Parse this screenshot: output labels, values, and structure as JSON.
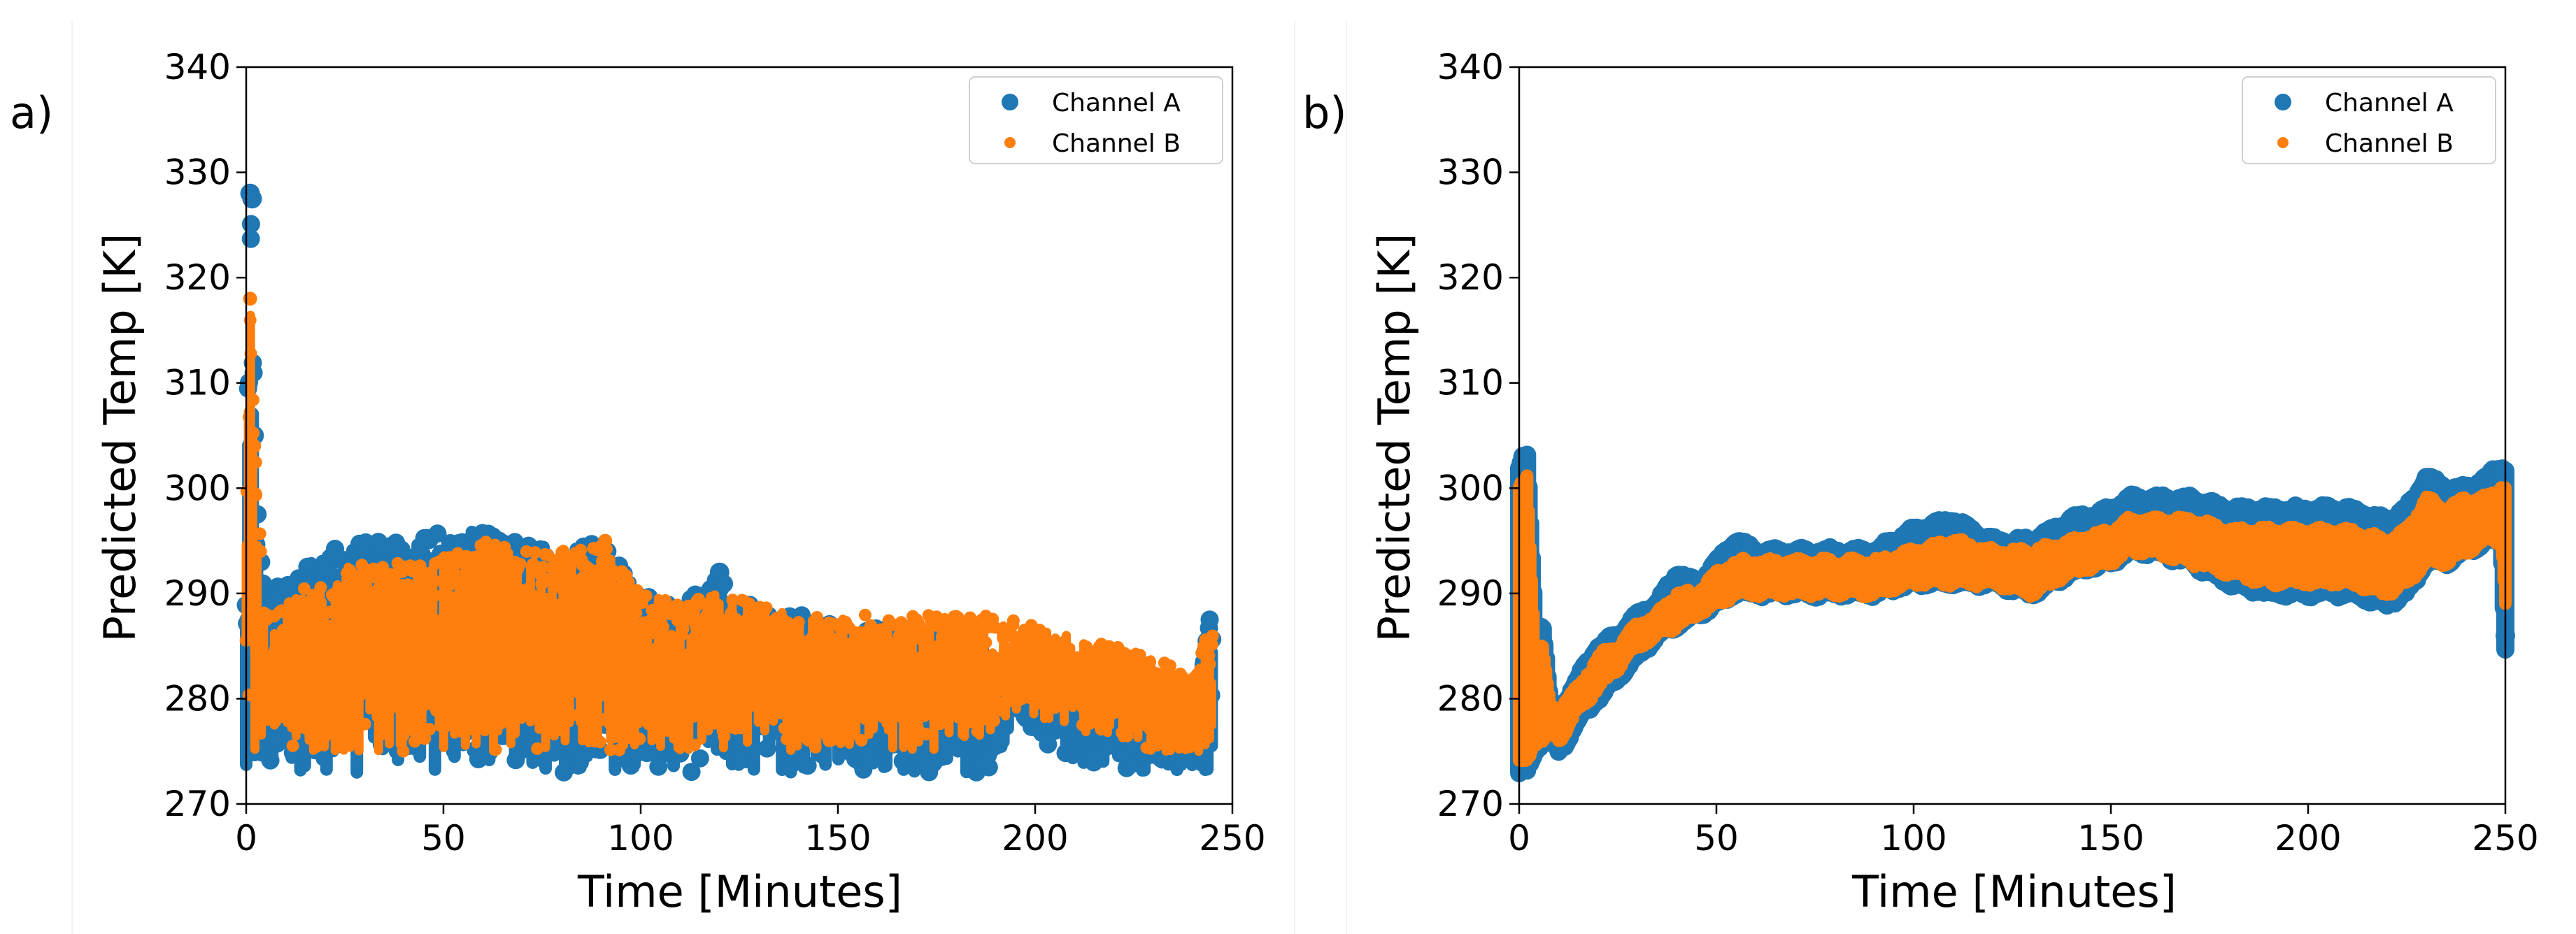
{
  "figure": {
    "panels": [
      "a)",
      "b)"
    ]
  },
  "chart_data": [
    {
      "type": "scatter",
      "panel": "a)",
      "title": "",
      "xlabel": "Time [Minutes]",
      "ylabel": "Predicted Temp [K]",
      "xlim": [
        0,
        250
      ],
      "ylim": [
        270,
        340
      ],
      "xticks": [
        0,
        50,
        100,
        150,
        200,
        250
      ],
      "yticks": [
        270,
        280,
        290,
        300,
        310,
        320,
        330,
        340
      ],
      "grid": false,
      "legend_position": "top-right",
      "series": [
        {
          "name": "Channel A",
          "color": "#1f77b4",
          "marker": "large-dot",
          "band": [
            [
              0,
              273,
              290
            ],
            [
              1,
              273,
              328
            ],
            [
              2,
              273,
              304
            ],
            [
              3,
              273,
              300
            ],
            [
              5,
              273,
              290
            ],
            [
              10,
              273,
              291
            ],
            [
              20,
              273,
              294
            ],
            [
              30,
              273,
              295
            ],
            [
              40,
              273,
              295
            ],
            [
              50,
              273,
              296
            ],
            [
              60,
              273,
              296
            ],
            [
              70,
              273,
              295
            ],
            [
              80,
              273,
              294
            ],
            [
              90,
              273,
              295
            ],
            [
              100,
              273,
              290
            ],
            [
              110,
              273,
              289
            ],
            [
              120,
              273,
              292
            ],
            [
              130,
              273,
              288
            ],
            [
              140,
              273,
              288
            ],
            [
              150,
              273,
              287
            ],
            [
              160,
              273,
              287
            ],
            [
              170,
              273,
              287
            ],
            [
              180,
              273,
              287
            ],
            [
              190,
              273,
              283
            ],
            [
              195,
              279,
              283
            ],
            [
              200,
              276,
              282
            ],
            [
              210,
              274,
              280
            ],
            [
              220,
              273,
              282
            ],
            [
              230,
              273,
              281
            ],
            [
              240,
              273,
              281
            ],
            [
              245,
              273,
              289
            ]
          ],
          "highlights": [
            [
              1,
              328
            ],
            [
              1.5,
              327.5
            ],
            [
              2,
              305
            ],
            [
              120,
              292
            ]
          ]
        },
        {
          "name": "Channel B",
          "color": "#ff7f0e",
          "marker": "small-dot",
          "band": [
            [
              0,
              274,
              300
            ],
            [
              1,
              274,
              318
            ],
            [
              2,
              275,
              304
            ],
            [
              5,
              276,
              288
            ],
            [
              10,
              275,
              289
            ],
            [
              20,
              275,
              292
            ],
            [
              30,
              275,
              293
            ],
            [
              40,
              275,
              293
            ],
            [
              50,
              275,
              294
            ],
            [
              60,
              275,
              295
            ],
            [
              70,
              275,
              294
            ],
            [
              80,
              275,
              294
            ],
            [
              90,
              275,
              295
            ],
            [
              100,
              275,
              290
            ],
            [
              110,
              275,
              289
            ],
            [
              120,
              275,
              290
            ],
            [
              130,
              275,
              289
            ],
            [
              140,
              275,
              288
            ],
            [
              150,
              275,
              288
            ],
            [
              160,
              275,
              288
            ],
            [
              170,
              275,
              288
            ],
            [
              180,
              275,
              288
            ],
            [
              190,
              276,
              288
            ],
            [
              200,
              278,
              287
            ],
            [
              210,
              277,
              286
            ],
            [
              220,
              276,
              285
            ],
            [
              230,
              275,
              284
            ],
            [
              240,
              275,
              282
            ],
            [
              245,
              275,
              288
            ]
          ],
          "highlights": [
            [
              1,
              318
            ],
            [
              2,
              304
            ],
            [
              91,
              295
            ]
          ]
        }
      ]
    },
    {
      "type": "scatter",
      "panel": "b)",
      "title": "",
      "xlabel": "Time [Minutes]",
      "ylabel": "Predicted Temp [K]",
      "xlim": [
        0,
        250
      ],
      "ylim": [
        270,
        340
      ],
      "xticks": [
        0,
        50,
        100,
        150,
        200,
        250
      ],
      "yticks": [
        270,
        280,
        290,
        300,
        310,
        320,
        330,
        340
      ],
      "grid": false,
      "legend_position": "top-right",
      "series": [
        {
          "name": "Channel A",
          "color": "#1f77b4",
          "marker": "large-dot",
          "band": [
            [
              0,
              273,
              302
            ],
            [
              2,
              273,
              303
            ],
            [
              4,
              275,
              287
            ],
            [
              6,
              276,
              287
            ],
            [
              8,
              276,
              279
            ],
            [
              10,
              275,
              279
            ],
            [
              12,
              276,
              280
            ],
            [
              15,
              278,
              282
            ],
            [
              20,
              280,
              285
            ],
            [
              25,
              282,
              286
            ],
            [
              30,
              284,
              288
            ],
            [
              35,
              286,
              289
            ],
            [
              40,
              287,
              292
            ],
            [
              45,
              288,
              291
            ],
            [
              50,
              289,
              293
            ],
            [
              55,
              290,
              295
            ],
            [
              60,
              290,
              294
            ],
            [
              70,
              290,
              294
            ],
            [
              80,
              290,
              294
            ],
            [
              90,
              290,
              294
            ],
            [
              100,
              291,
              296
            ],
            [
              110,
              291,
              297
            ],
            [
              120,
              291,
              295
            ],
            [
              130,
              290,
              295
            ],
            [
              140,
              292,
              297
            ],
            [
              150,
              293,
              298
            ],
            [
              155,
              294,
              299
            ],
            [
              160,
              294,
              299
            ],
            [
              170,
              293,
              299
            ],
            [
              180,
              291,
              298
            ],
            [
              190,
              290,
              298
            ],
            [
              200,
              290,
              298
            ],
            [
              210,
              290,
              298
            ],
            [
              220,
              289,
              297
            ],
            [
              225,
              290,
              298
            ],
            [
              230,
              293,
              301
            ],
            [
              235,
              293,
              300
            ],
            [
              240,
              294,
              300
            ],
            [
              245,
              295,
              301
            ],
            [
              249,
              295,
              302
            ],
            [
              250,
              285,
              302
            ]
          ],
          "highlights": [
            [
              1,
              303
            ],
            [
              230,
              301
            ],
            [
              249,
              301.5
            ],
            [
              250,
              286
            ]
          ]
        },
        {
          "name": "Channel B",
          "color": "#ff7f0e",
          "marker": "small-dot",
          "band": [
            [
              0,
              274,
              300
            ],
            [
              2,
              274,
              301
            ],
            [
              4,
              276,
              285
            ],
            [
              6,
              276,
              285
            ],
            [
              8,
              277,
              279
            ],
            [
              10,
              276,
              279
            ],
            [
              12,
              277,
              280
            ],
            [
              15,
              279,
              281
            ],
            [
              20,
              281,
              284
            ],
            [
              25,
              283,
              285
            ],
            [
              30,
              285,
              287
            ],
            [
              35,
              286,
              288
            ],
            [
              40,
              287,
              290
            ],
            [
              45,
              288,
              290
            ],
            [
              50,
              289,
              292
            ],
            [
              55,
              290,
              293
            ],
            [
              60,
              290,
              293
            ],
            [
              70,
              290,
              293
            ],
            [
              80,
              290,
              293
            ],
            [
              90,
              290,
              293
            ],
            [
              100,
              291,
              294
            ],
            [
              110,
              291,
              295
            ],
            [
              120,
              291,
              294
            ],
            [
              130,
              290,
              294
            ],
            [
              140,
              292,
              295
            ],
            [
              150,
              293,
              296
            ],
            [
              155,
              294,
              297
            ],
            [
              160,
              294,
              297
            ],
            [
              170,
              293,
              297
            ],
            [
              180,
              292,
              296
            ],
            [
              190,
              291,
              296
            ],
            [
              200,
              291,
              296
            ],
            [
              210,
              291,
              296
            ],
            [
              220,
              290,
              295
            ],
            [
              225,
              291,
              296
            ],
            [
              230,
              293,
              299
            ],
            [
              235,
              293,
              298
            ],
            [
              240,
              294,
              299
            ],
            [
              245,
              295,
              299
            ],
            [
              249,
              295,
              300
            ],
            [
              250,
              289,
              300
            ]
          ],
          "highlights": [
            [
              1,
              300
            ],
            [
              249,
              300
            ]
          ]
        }
      ]
    }
  ]
}
